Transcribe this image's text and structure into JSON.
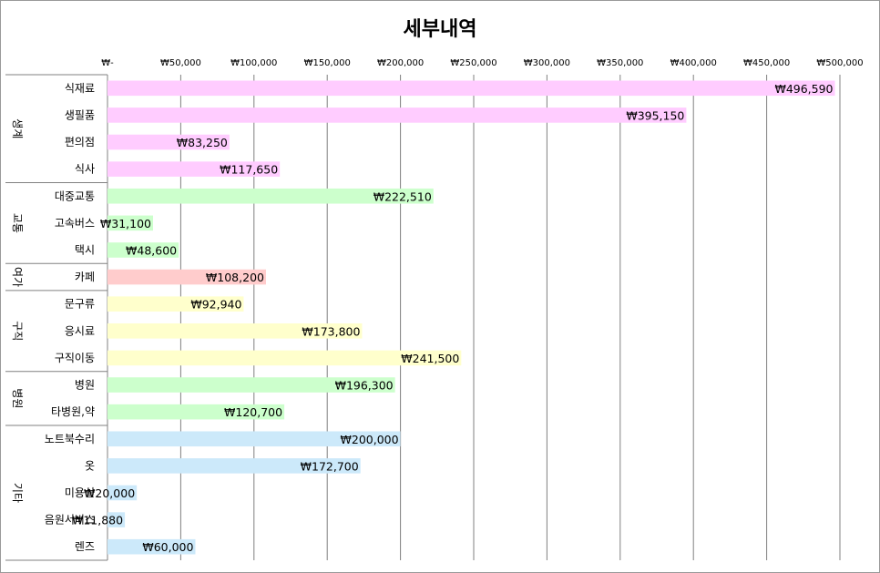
{
  "chart_data": {
    "type": "bar",
    "orientation": "horizontal",
    "title": "세부내역",
    "xlim": [
      0,
      500000
    ],
    "x_ticks": [
      0,
      50000,
      100000,
      150000,
      200000,
      250000,
      300000,
      350000,
      400000,
      450000,
      500000
    ],
    "x_tick_labels": [
      "₩-",
      "₩50,000",
      "₩100,000",
      "₩150,000",
      "₩200,000",
      "₩250,000",
      "₩300,000",
      "₩350,000",
      "₩400,000",
      "₩450,000",
      "₩500,000"
    ],
    "x_axis_position": "top",
    "grid": true,
    "legend": false,
    "groups": [
      {
        "name": "생계",
        "color": "#ffccff",
        "items": [
          {
            "category": "식재료",
            "value": 496590,
            "label": "₩496,590"
          },
          {
            "category": "생필품",
            "value": 395150,
            "label": "₩395,150"
          },
          {
            "category": "편의점",
            "value": 83250,
            "label": "₩83,250"
          },
          {
            "category": "식사",
            "value": 117650,
            "label": "₩117,650"
          }
        ]
      },
      {
        "name": "교통",
        "color": "#ccffcc",
        "items": [
          {
            "category": "대중교통",
            "value": 222510,
            "label": "₩222,510"
          },
          {
            "category": "고속버스",
            "value": 31100,
            "label": "₩31,100"
          },
          {
            "category": "택시",
            "value": 48600,
            "label": "₩48,600"
          }
        ]
      },
      {
        "name": "여가",
        "color": "#ffcccc",
        "items": [
          {
            "category": "카페",
            "value": 108200,
            "label": "₩108,200"
          }
        ]
      },
      {
        "name": "구직",
        "color": "#ffffcc",
        "items": [
          {
            "category": "문구류",
            "value": 92940,
            "label": "₩92,940"
          },
          {
            "category": "응시료",
            "value": 173800,
            "label": "₩173,800"
          },
          {
            "category": "구직이동",
            "value": 241500,
            "label": "₩241,500"
          }
        ]
      },
      {
        "name": "병원",
        "color": "#ccffcc",
        "items": [
          {
            "category": "병원",
            "value": 196300,
            "label": "₩196,300"
          },
          {
            "category": "타병원,약",
            "value": 120700,
            "label": "₩120,700"
          }
        ]
      },
      {
        "name": "기타",
        "color": "#cce9fa",
        "items": [
          {
            "category": "노트북수리",
            "value": 200000,
            "label": "₩200,000"
          },
          {
            "category": "옷",
            "value": 172700,
            "label": "₩172,700"
          },
          {
            "category": "미용실",
            "value": 20000,
            "label": "₩20,000"
          },
          {
            "category": "음원서비스",
            "value": 11880,
            "label": "₩11,880"
          },
          {
            "category": "렌즈",
            "value": 60000,
            "label": "₩60,000"
          }
        ]
      }
    ]
  }
}
